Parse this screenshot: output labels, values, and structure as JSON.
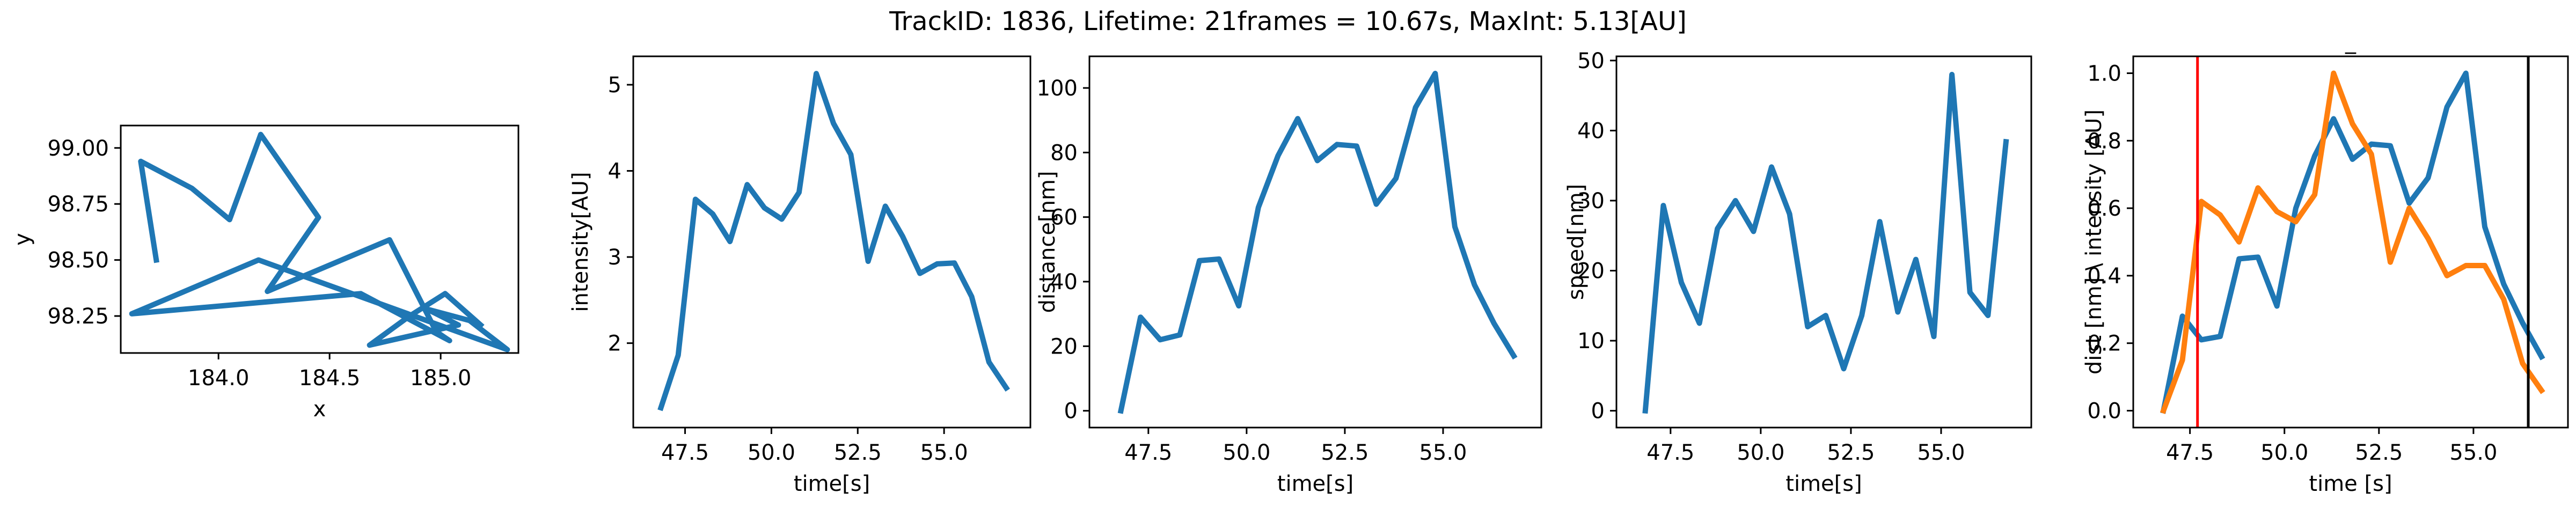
{
  "figure": {
    "suptitle": "TrackID: 1836, Lifetime: 21frames = 10.67s, MaxInt: 5.13[AU]"
  },
  "colors": {
    "series_blue": "#1f77b4",
    "series_orange": "#ff7f0e",
    "marker_red": "#ff0000",
    "marker_black": "#000000"
  },
  "chart_data": [
    {
      "type": "line",
      "title": "",
      "xlabel": "x",
      "ylabel": "y",
      "xlim": [
        183.56,
        185.35
      ],
      "ylim": [
        98.085,
        99.1
      ],
      "xticks": [
        184.0,
        184.5,
        185.0
      ],
      "xtick_labels": [
        "184.0",
        "184.5",
        "185.0"
      ],
      "yticks": [
        98.25,
        98.5,
        98.75,
        99.0
      ],
      "ytick_labels": [
        "98.25",
        "98.50",
        "98.75",
        "99.00"
      ],
      "grid": false,
      "series": [
        {
          "color": "#1f77b4",
          "x": [
            183.72,
            183.65,
            183.88,
            184.05,
            184.19,
            184.45,
            184.22,
            184.77,
            184.98,
            185.04,
            184.64,
            183.61,
            184.18,
            185.3,
            185.13,
            184.94,
            185.08,
            184.68,
            184.86,
            185.02,
            185.18
          ],
          "y": [
            98.5,
            98.94,
            98.82,
            98.68,
            99.06,
            98.69,
            98.36,
            98.59,
            98.18,
            98.14,
            98.35,
            98.26,
            98.5,
            98.1,
            98.23,
            98.28,
            98.21,
            98.12,
            98.25,
            98.35,
            98.21
          ]
        }
      ]
    },
    {
      "type": "line",
      "title": "",
      "xlabel": "time[s]",
      "ylabel": "intensity[AU]",
      "xlim": [
        46.0,
        57.5
      ],
      "ylim": [
        1.02,
        5.33
      ],
      "xticks": [
        47.5,
        50.0,
        52.5,
        55.0
      ],
      "xtick_labels": [
        "47.5",
        "50.0",
        "52.5",
        "55.0"
      ],
      "yticks": [
        2,
        3,
        4,
        5
      ],
      "ytick_labels": [
        "2",
        "3",
        "4",
        "5"
      ],
      "grid": false,
      "series": [
        {
          "color": "#1f77b4",
          "x": [
            46.8,
            47.3,
            47.8,
            48.3,
            48.8,
            49.3,
            49.8,
            50.3,
            50.8,
            51.3,
            51.8,
            52.3,
            52.8,
            53.3,
            53.8,
            54.3,
            54.8,
            55.3,
            55.8,
            56.3,
            56.8
          ],
          "y": [
            1.25,
            1.86,
            3.67,
            3.5,
            3.18,
            3.84,
            3.57,
            3.44,
            3.75,
            5.13,
            4.55,
            4.19,
            2.95,
            3.59,
            3.24,
            2.81,
            2.92,
            2.93,
            2.54,
            1.78,
            1.48
          ]
        }
      ]
    },
    {
      "type": "line",
      "title": "",
      "xlabel": "time[s]",
      "ylabel": "distance[nm]",
      "xlim": [
        46.0,
        57.5
      ],
      "ylim": [
        -5.2,
        109.8
      ],
      "xticks": [
        47.5,
        50.0,
        52.5,
        55.0
      ],
      "xtick_labels": [
        "47.5",
        "50.0",
        "52.5",
        "55.0"
      ],
      "yticks": [
        0,
        20,
        40,
        60,
        80,
        100
      ],
      "ytick_labels": [
        "0",
        "20",
        "40",
        "60",
        "80",
        "100"
      ],
      "grid": false,
      "series": [
        {
          "color": "#1f77b4",
          "x": [
            46.8,
            47.3,
            47.8,
            48.3,
            48.8,
            49.3,
            49.8,
            50.3,
            50.8,
            51.3,
            51.8,
            52.3,
            52.8,
            53.3,
            53.8,
            54.3,
            54.8,
            55.3,
            55.8,
            56.3,
            56.8
          ],
          "y": [
            0,
            29,
            22,
            23.5,
            46.5,
            47,
            32.5,
            63,
            79,
            90.5,
            77.5,
            82.5,
            82,
            64,
            72,
            94,
            104.5,
            57,
            39,
            27,
            17
          ]
        }
      ]
    },
    {
      "type": "line",
      "title": "",
      "xlabel": "time[s]",
      "ylabel": "speed[nm]",
      "xlim": [
        46.0,
        57.5
      ],
      "ylim": [
        -2.4,
        50.6
      ],
      "xticks": [
        47.5,
        50.0,
        52.5,
        55.0
      ],
      "xtick_labels": [
        "47.5",
        "50.0",
        "52.5",
        "55.0"
      ],
      "yticks": [
        0,
        10,
        20,
        30,
        40,
        50
      ],
      "ytick_labels": [
        "0",
        "10",
        "20",
        "30",
        "40",
        "50"
      ],
      "grid": false,
      "series": [
        {
          "color": "#1f77b4",
          "x": [
            46.8,
            47.3,
            47.8,
            48.3,
            48.8,
            49.3,
            49.8,
            50.3,
            50.8,
            51.3,
            51.8,
            52.3,
            52.8,
            53.3,
            53.8,
            54.3,
            54.8,
            55.3,
            55.8,
            56.3,
            56.8
          ],
          "y": [
            0,
            29.3,
            18.3,
            12.5,
            26,
            30,
            25.6,
            34.8,
            28.1,
            12.0,
            13.6,
            6,
            13.6,
            27,
            14.1,
            21.6,
            10.6,
            48,
            16.9,
            13.6,
            38.4
          ]
        }
      ]
    },
    {
      "type": "line",
      "title": "_",
      "xlabel": "time [s]",
      "ylabel": "dist [nm] \\ intensity [AU]",
      "xlim": [
        46.0,
        57.5
      ],
      "ylim": [
        -0.05,
        1.05
      ],
      "xticks": [
        47.5,
        50.0,
        52.5,
        55.0
      ],
      "xtick_labels": [
        "47.5",
        "50.0",
        "52.5",
        "55.0"
      ],
      "yticks": [
        0.0,
        0.2,
        0.4,
        0.6,
        0.8,
        1.0
      ],
      "ytick_labels": [
        "0.0",
        "0.2",
        "0.4",
        "0.6",
        "0.8",
        "1.0"
      ],
      "grid": false,
      "vlines": [
        {
          "x": 47.7,
          "color": "#ff0000"
        },
        {
          "x": 56.45,
          "color": "#000000"
        }
      ],
      "series": [
        {
          "color": "#1f77b4",
          "x": [
            46.8,
            47.3,
            47.8,
            48.3,
            48.8,
            49.3,
            49.8,
            50.3,
            50.8,
            51.3,
            51.8,
            52.3,
            52.8,
            53.3,
            53.8,
            54.3,
            54.8,
            55.3,
            55.8,
            56.3,
            56.8
          ],
          "y": [
            0,
            0.28,
            0.21,
            0.22,
            0.45,
            0.455,
            0.31,
            0.6,
            0.755,
            0.865,
            0.745,
            0.79,
            0.785,
            0.615,
            0.69,
            0.9,
            1.0,
            0.545,
            0.375,
            0.26,
            0.16
          ]
        },
        {
          "color": "#ff7f0e",
          "x": [
            46.8,
            47.3,
            47.8,
            48.3,
            48.8,
            49.3,
            49.8,
            50.3,
            50.8,
            51.3,
            51.8,
            52.3,
            52.8,
            53.3,
            53.8,
            54.3,
            54.8,
            55.3,
            55.8,
            56.3,
            56.8
          ],
          "y": [
            0,
            0.15,
            0.62,
            0.58,
            0.5,
            0.66,
            0.59,
            0.56,
            0.64,
            1.0,
            0.85,
            0.76,
            0.44,
            0.6,
            0.51,
            0.4,
            0.43,
            0.43,
            0.33,
            0.14,
            0.06
          ]
        }
      ]
    }
  ]
}
